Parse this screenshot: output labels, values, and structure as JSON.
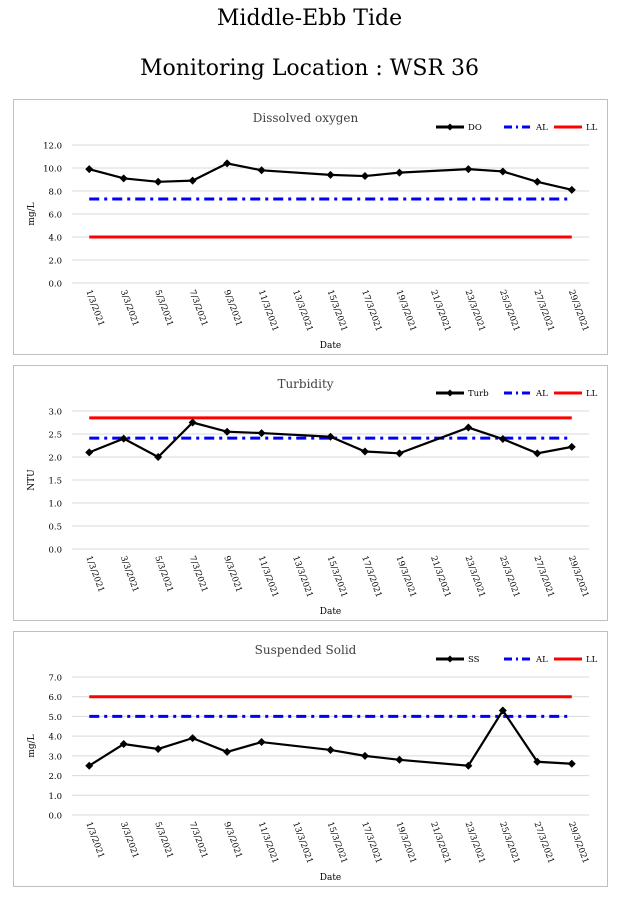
{
  "page": {
    "title": "Middle-Ebb Tide",
    "subtitle": "Monitoring Location : WSR 36"
  },
  "chart_data": [
    {
      "type": "line",
      "title": "Dissolved oxygen",
      "xlabel": "Date",
      "ylabel": "mg/L",
      "ylim": [
        0,
        12
      ],
      "y_ticks": [
        "0.0",
        "2.0",
        "4.0",
        "6.0",
        "8.0",
        "10.0",
        "12.0"
      ],
      "x_ticks": [
        "1/3/2021",
        "3/3/2021",
        "5/3/2021",
        "7/3/2021",
        "9/3/2021",
        "11/3/2021",
        "13/3/2021",
        "15/3/2021",
        "17/3/2021",
        "19/3/2021",
        "21/3/2021",
        "23/3/2021",
        "25/3/2021",
        "27/3/2021",
        "29/3/2021"
      ],
      "grid": true,
      "legend_position": "top-right",
      "series": [
        {
          "name": "DO",
          "style": "line-marker",
          "color": "#000000",
          "x": [
            "1/3/2021",
            "3/3/2021",
            "5/3/2021",
            "7/3/2021",
            "9/3/2021",
            "11/3/2021",
            "15/3/2021",
            "17/3/2021",
            "19/3/2021",
            "23/3/2021",
            "25/3/2021",
            "27/3/2021",
            "29/3/2021"
          ],
          "y": [
            9.9,
            9.1,
            8.8,
            8.9,
            10.4,
            9.8,
            9.4,
            9.3,
            9.6,
            9.9,
            9.7,
            8.8,
            8.1
          ]
        },
        {
          "name": "AL",
          "style": "dash-dot",
          "color": "#0000ff",
          "y": 7.3
        },
        {
          "name": "LL",
          "style": "solid",
          "color": "#ff0000",
          "y": 4.0
        }
      ]
    },
    {
      "type": "line",
      "title": "Turbidity",
      "xlabel": "Date",
      "ylabel": "NTU",
      "ylim": [
        0,
        3
      ],
      "y_ticks": [
        "0.0",
        "0.5",
        "1.0",
        "1.5",
        "2.0",
        "2.5",
        "3.0"
      ],
      "x_ticks": [
        "1/3/2021",
        "3/3/2021",
        "5/3/2021",
        "7/3/2021",
        "9/3/2021",
        "11/3/2021",
        "13/3/2021",
        "15/3/2021",
        "17/3/2021",
        "19/3/2021",
        "21/3/2021",
        "23/3/2021",
        "25/3/2021",
        "27/3/2021",
        "29/3/2021"
      ],
      "grid": true,
      "legend_position": "top-right",
      "series": [
        {
          "name": "Turb",
          "style": "line-marker",
          "color": "#000000",
          "x": [
            "1/3/2021",
            "3/3/2021",
            "5/3/2021",
            "7/3/2021",
            "9/3/2021",
            "11/3/2021",
            "15/3/2021",
            "17/3/2021",
            "19/3/2021",
            "23/3/2021",
            "25/3/2021",
            "27/3/2021",
            "29/3/2021"
          ],
          "y": [
            2.1,
            2.4,
            2.0,
            2.75,
            2.55,
            2.52,
            2.44,
            2.12,
            2.08,
            2.64,
            2.39,
            2.08,
            2.22
          ]
        },
        {
          "name": "AL",
          "style": "dash-dot",
          "color": "#0000ff",
          "y": 2.41
        },
        {
          "name": "LL",
          "style": "solid",
          "color": "#ff0000",
          "y": 2.85
        }
      ]
    },
    {
      "type": "line",
      "title": "Suspended Solid",
      "xlabel": "Date",
      "ylabel": "mg/L",
      "ylim": [
        0,
        7
      ],
      "y_ticks": [
        "0.0",
        "1.0",
        "2.0",
        "3.0",
        "4.0",
        "5.0",
        "6.0",
        "7.0"
      ],
      "x_ticks": [
        "1/3/2021",
        "3/3/2021",
        "5/3/2021",
        "7/3/2021",
        "9/3/2021",
        "11/3/2021",
        "13/3/2021",
        "15/3/2021",
        "17/3/2021",
        "19/3/2021",
        "21/3/2021",
        "23/3/2021",
        "25/3/2021",
        "27/3/2021",
        "29/3/2021"
      ],
      "grid": true,
      "legend_position": "top-right",
      "series": [
        {
          "name": "SS",
          "style": "line-marker",
          "color": "#000000",
          "x": [
            "1/3/2021",
            "3/3/2021",
            "5/3/2021",
            "7/3/2021",
            "9/3/2021",
            "11/3/2021",
            "15/3/2021",
            "17/3/2021",
            "19/3/2021",
            "23/3/2021",
            "25/3/2021",
            "27/3/2021",
            "29/3/2021"
          ],
          "y": [
            2.5,
            3.6,
            3.35,
            3.9,
            3.2,
            3.7,
            3.3,
            3.0,
            2.8,
            2.5,
            5.3,
            2.7,
            2.6
          ]
        },
        {
          "name": "AL",
          "style": "dash-dot",
          "color": "#0000ff",
          "y": 5.0
        },
        {
          "name": "LL",
          "style": "solid",
          "color": "#ff0000",
          "y": 6.0
        }
      ]
    }
  ]
}
